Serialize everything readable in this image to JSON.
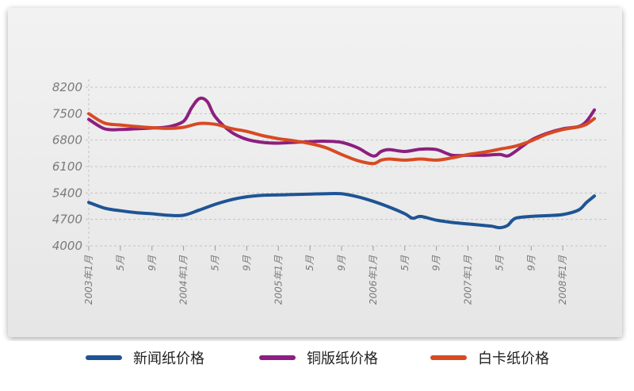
{
  "chart_data": {
    "type": "line",
    "y_ticks": [
      "8200",
      "7500",
      "6800",
      "6100",
      "5400",
      "4700",
      "4000"
    ],
    "ylim": [
      4000,
      8200
    ],
    "grid": true,
    "legend_position": "bottom",
    "x_tick_labels": [
      "2003年1月",
      "5月",
      "9月",
      "2004年1月",
      "5月",
      "9月",
      "2005年1月",
      "5月",
      "9月",
      "2006年1月",
      "5月",
      "9月",
      "2007年1月",
      "5月",
      "9月",
      "2008年1月"
    ],
    "x_tick_index": [
      0,
      4,
      8,
      12,
      16,
      20,
      24,
      28,
      32,
      36,
      40,
      44,
      48,
      52,
      56,
      60
    ],
    "x_months": 65,
    "series": [
      {
        "name": "新闻纸价格",
        "color": "#1f5494",
        "values": [
          [
            0,
            5150
          ],
          [
            2,
            5000
          ],
          [
            4,
            4930
          ],
          [
            6,
            4880
          ],
          [
            8,
            4850
          ],
          [
            10,
            4810
          ],
          [
            12,
            4810
          ],
          [
            14,
            4950
          ],
          [
            16,
            5100
          ],
          [
            18,
            5220
          ],
          [
            20,
            5300
          ],
          [
            22,
            5340
          ],
          [
            24,
            5350
          ],
          [
            26,
            5360
          ],
          [
            28,
            5370
          ],
          [
            30,
            5380
          ],
          [
            32,
            5380
          ],
          [
            34,
            5300
          ],
          [
            36,
            5180
          ],
          [
            38,
            5030
          ],
          [
            40,
            4850
          ],
          [
            41,
            4730
          ],
          [
            42,
            4780
          ],
          [
            44,
            4680
          ],
          [
            46,
            4620
          ],
          [
            48,
            4580
          ],
          [
            50,
            4540
          ],
          [
            51,
            4520
          ],
          [
            52,
            4480
          ],
          [
            53,
            4540
          ],
          [
            54,
            4730
          ],
          [
            56,
            4780
          ],
          [
            58,
            4800
          ],
          [
            60,
            4830
          ],
          [
            62,
            4950
          ],
          [
            63,
            5150
          ],
          [
            64,
            5320
          ]
        ]
      },
      {
        "name": "铜版纸价格",
        "color": "#8c1f7f",
        "values": [
          [
            0,
            7350
          ],
          [
            2,
            7100
          ],
          [
            4,
            7080
          ],
          [
            6,
            7100
          ],
          [
            8,
            7120
          ],
          [
            10,
            7150
          ],
          [
            12,
            7300
          ],
          [
            13,
            7650
          ],
          [
            14,
            7900
          ],
          [
            15,
            7820
          ],
          [
            16,
            7420
          ],
          [
            18,
            7020
          ],
          [
            20,
            6820
          ],
          [
            22,
            6740
          ],
          [
            24,
            6720
          ],
          [
            26,
            6740
          ],
          [
            28,
            6760
          ],
          [
            30,
            6770
          ],
          [
            32,
            6740
          ],
          [
            34,
            6600
          ],
          [
            36,
            6380
          ],
          [
            37,
            6500
          ],
          [
            38,
            6550
          ],
          [
            40,
            6500
          ],
          [
            42,
            6560
          ],
          [
            44,
            6550
          ],
          [
            46,
            6400
          ],
          [
            48,
            6400
          ],
          [
            50,
            6400
          ],
          [
            52,
            6420
          ],
          [
            53,
            6380
          ],
          [
            54,
            6500
          ],
          [
            56,
            6800
          ],
          [
            58,
            6980
          ],
          [
            60,
            7100
          ],
          [
            62,
            7160
          ],
          [
            63,
            7300
          ],
          [
            64,
            7600
          ]
        ]
      },
      {
        "name": "白卡纸价格",
        "color": "#d84a22",
        "values": [
          [
            0,
            7500
          ],
          [
            2,
            7250
          ],
          [
            4,
            7200
          ],
          [
            6,
            7160
          ],
          [
            8,
            7130
          ],
          [
            10,
            7110
          ],
          [
            12,
            7140
          ],
          [
            14,
            7240
          ],
          [
            16,
            7220
          ],
          [
            18,
            7110
          ],
          [
            20,
            7030
          ],
          [
            22,
            6920
          ],
          [
            24,
            6840
          ],
          [
            26,
            6780
          ],
          [
            28,
            6710
          ],
          [
            30,
            6600
          ],
          [
            32,
            6420
          ],
          [
            34,
            6260
          ],
          [
            36,
            6180
          ],
          [
            37,
            6270
          ],
          [
            38,
            6300
          ],
          [
            40,
            6270
          ],
          [
            42,
            6300
          ],
          [
            44,
            6270
          ],
          [
            46,
            6330
          ],
          [
            48,
            6420
          ],
          [
            50,
            6480
          ],
          [
            52,
            6560
          ],
          [
            54,
            6640
          ],
          [
            56,
            6780
          ],
          [
            58,
            6960
          ],
          [
            60,
            7080
          ],
          [
            62,
            7150
          ],
          [
            63,
            7220
          ],
          [
            64,
            7370
          ]
        ]
      }
    ]
  }
}
